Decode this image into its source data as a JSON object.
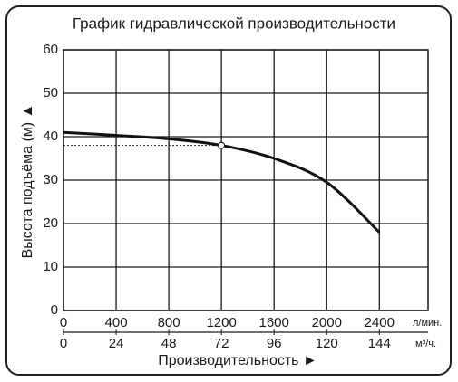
{
  "chart_data": {
    "type": "line",
    "title": "График гидравлической производительности",
    "y_label": "Высота подъёма (м) ▲",
    "x_label": "Производительность ►",
    "x_unit": "л/мин.",
    "x2_unit": "м³/ч.",
    "x": [
      0,
      400,
      800,
      1200,
      1600,
      2000,
      2400
    ],
    "values": [
      41,
      40.3,
      39.5,
      38,
      35,
      29.5,
      18
    ],
    "color": "#111111",
    "xlim": [
      0,
      2770
    ],
    "xticks": [
      0,
      400,
      800,
      1200,
      1600,
      2000,
      2400
    ],
    "x2lim": [
      0,
      166.2
    ],
    "x2ticks": [
      0,
      24,
      48,
      72,
      96,
      120,
      144
    ],
    "ylim": [
      0,
      60
    ],
    "yticks": [
      0,
      10,
      20,
      30,
      40,
      50,
      60
    ],
    "grid": true,
    "marker": {
      "x": 1200,
      "y": 38
    }
  }
}
